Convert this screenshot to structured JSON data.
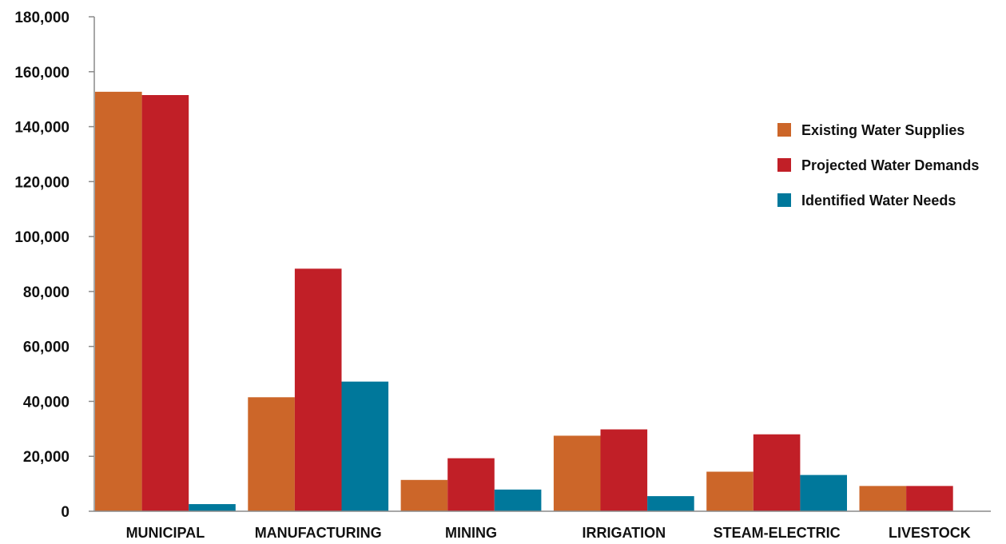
{
  "colors": {
    "existing": "#CC6629",
    "projected": "#C11F27",
    "needs": "#00789B",
    "axis": "#8A8A8A"
  },
  "chart_data": {
    "type": "bar",
    "categories": [
      "MUNICIPAL",
      "MANUFACTURING",
      "MINING",
      "IRRIGATION",
      "STEAM-ELECTRIC",
      "LIVESTOCK"
    ],
    "series": [
      {
        "name": "Existing Water Supplies",
        "values": [
          152700,
          41500,
          11400,
          27500,
          14400,
          9200
        ]
      },
      {
        "name": "Projected Water Demands",
        "values": [
          151500,
          88300,
          19300,
          29800,
          28000,
          9200
        ]
      },
      {
        "name": "Identified Water Needs",
        "values": [
          2600,
          47200,
          7900,
          5500,
          13200,
          0
        ]
      }
    ],
    "yticks": [
      "0",
      "20,000",
      "40,000",
      "60,000",
      "80,000",
      "100,000",
      "120,000",
      "140,000",
      "160,000",
      "180,000"
    ],
    "ylim": [
      0,
      180000
    ],
    "grid": false,
    "legend": "right"
  }
}
